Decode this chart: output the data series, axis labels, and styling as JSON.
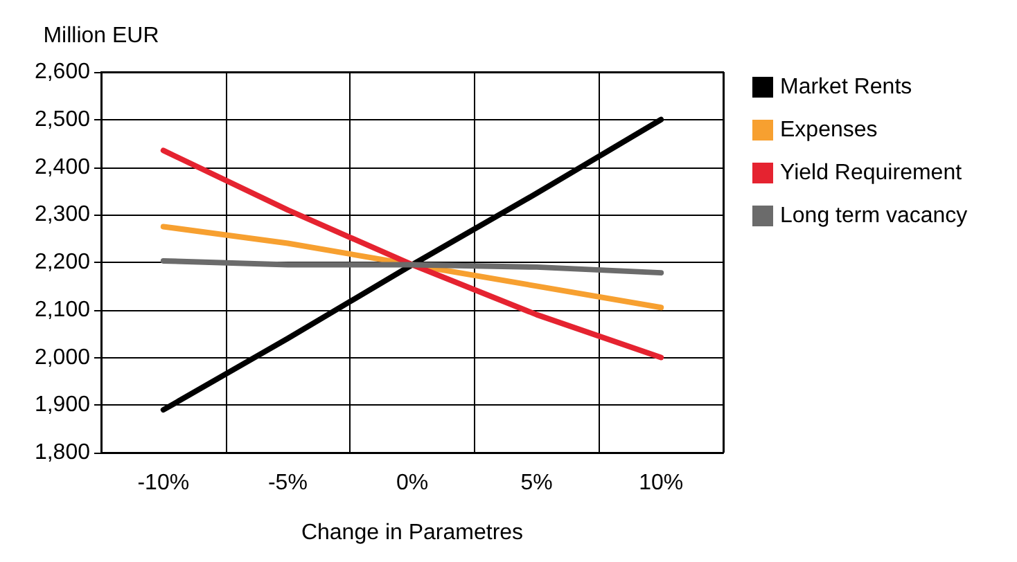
{
  "chart_data": {
    "type": "line",
    "ylabel": "Million EUR",
    "xlabel": "Change in Parametres",
    "categories": [
      "-10%",
      "-5%",
      "0%",
      "5%",
      "10%"
    ],
    "series": [
      {
        "name": "Market Rents",
        "color": "#000000",
        "values": [
          1890,
          2040,
          2195,
          2345,
          2500
        ]
      },
      {
        "name": "Expenses",
        "color": "#f7a030",
        "values": [
          2275,
          2240,
          2195,
          2150,
          2105
        ]
      },
      {
        "name": "Yield Requirement",
        "color": "#e52330",
        "values": [
          2435,
          2310,
          2195,
          2090,
          2000
        ]
      },
      {
        "name": "Long term vacancy",
        "color": "#6b6b6b",
        "values": [
          2203,
          2195,
          2195,
          2190,
          2178
        ]
      }
    ],
    "ylim": [
      1800,
      2600
    ],
    "yticks": [
      {
        "value": 1800,
        "label": "1,800"
      },
      {
        "value": 1900,
        "label": "1,900"
      },
      {
        "value": 2000,
        "label": "2,000"
      },
      {
        "value": 2100,
        "label": "2,100"
      },
      {
        "value": 2200,
        "label": "2,200"
      },
      {
        "value": 2300,
        "label": "2,300"
      },
      {
        "value": 2400,
        "label": "2,400"
      },
      {
        "value": 2500,
        "label": "2,500"
      },
      {
        "value": 2600,
        "label": "2,600"
      }
    ],
    "grid": true,
    "legend": "right",
    "marker": "none",
    "line_style": "solid"
  }
}
